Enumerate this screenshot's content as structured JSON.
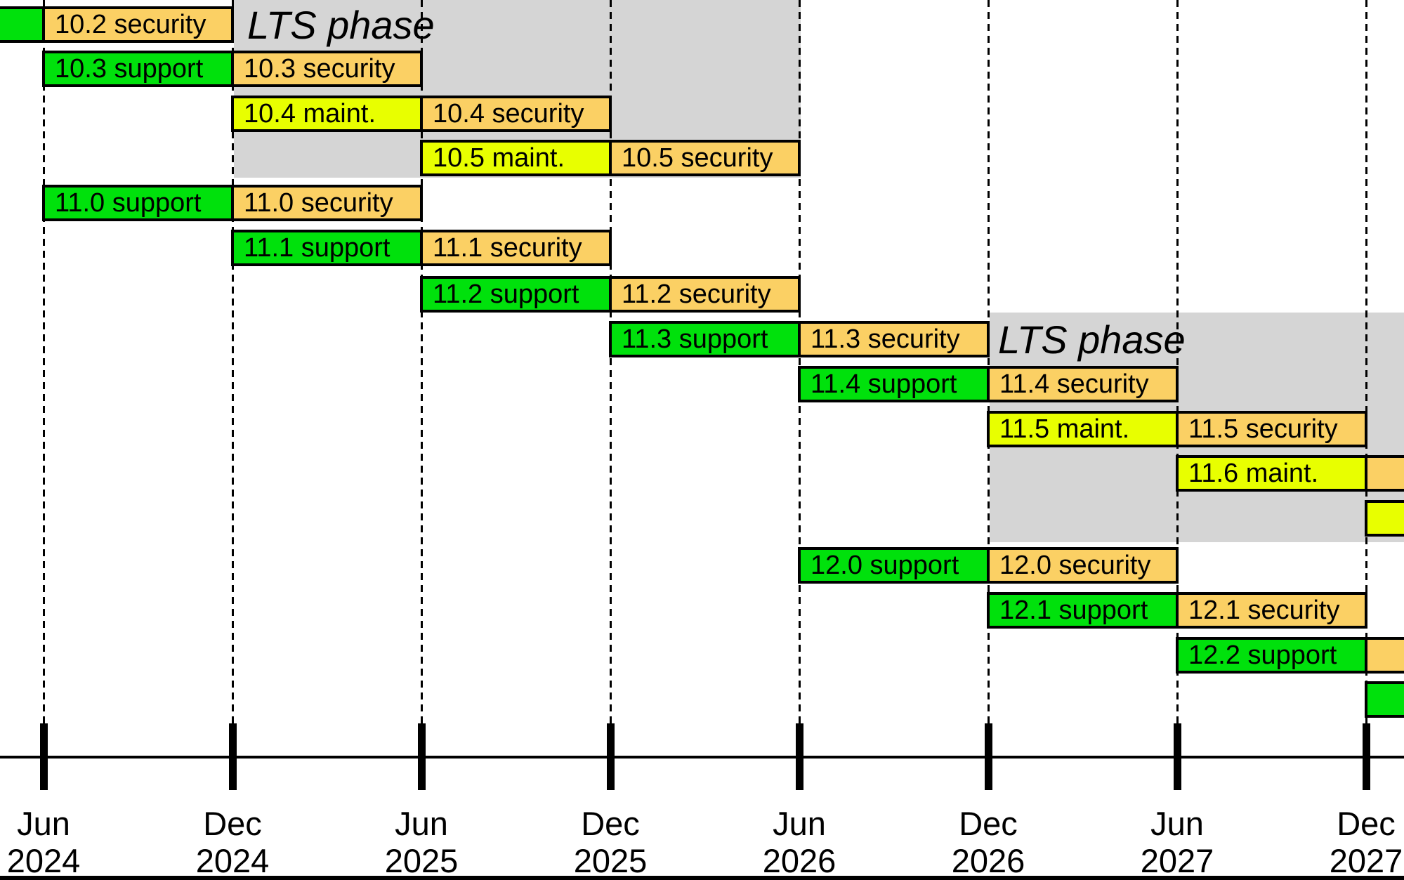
{
  "chart_data": {
    "type": "gantt",
    "description": "Software release support lifecycle timeline",
    "time_axis": {
      "unit": "months",
      "start": "2024-06",
      "end": "2027-12",
      "tick_interval_months": 6,
      "ticks": [
        {
          "month": "Jun",
          "year": "2024"
        },
        {
          "month": "Dec",
          "year": "2024"
        },
        {
          "month": "Jun",
          "year": "2025"
        },
        {
          "month": "Dec",
          "year": "2025"
        },
        {
          "month": "Jun",
          "year": "2026"
        },
        {
          "month": "Dec",
          "year": "2026"
        },
        {
          "month": "Jun",
          "year": "2027"
        },
        {
          "month": "Dec",
          "year": "2027"
        }
      ],
      "gridlines": "dashed-vertical-at-ticks"
    },
    "phases": {
      "support": "#00e10c",
      "maint": "#e8ff00",
      "security": "#fbd064"
    },
    "lts_color": "#d5d5d5",
    "bars": [
      {
        "row": 1,
        "version": "10.2",
        "phase": "support",
        "label": "",
        "start": null,
        "end": "2024-06"
      },
      {
        "row": 1,
        "version": "10.2",
        "phase": "security",
        "label": "10.2 security",
        "start": "2024-06",
        "end": "2024-12"
      },
      {
        "row": 2,
        "version": "10.3",
        "phase": "support",
        "label": "10.3 support",
        "start": "2024-06",
        "end": "2024-12"
      },
      {
        "row": 2,
        "version": "10.3",
        "phase": "security",
        "label": "10.3 security",
        "start": "2024-12",
        "end": "2025-06"
      },
      {
        "row": 3,
        "version": "10.4",
        "phase": "maint",
        "label": "10.4 maint.",
        "start": "2024-12",
        "end": "2025-06"
      },
      {
        "row": 3,
        "version": "10.4",
        "phase": "security",
        "label": "10.4 security",
        "start": "2025-06",
        "end": "2025-12"
      },
      {
        "row": 4,
        "version": "10.5",
        "phase": "maint",
        "label": "10.5 maint.",
        "start": "2025-06",
        "end": "2025-12"
      },
      {
        "row": 4,
        "version": "10.5",
        "phase": "security",
        "label": "10.5 security",
        "start": "2025-12",
        "end": "2026-06"
      },
      {
        "row": 5,
        "version": "11.0",
        "phase": "support",
        "label": "11.0 support",
        "start": "2024-06",
        "end": "2024-12"
      },
      {
        "row": 5,
        "version": "11.0",
        "phase": "security",
        "label": "11.0 security",
        "start": "2024-12",
        "end": "2025-06"
      },
      {
        "row": 6,
        "version": "11.1",
        "phase": "support",
        "label": "11.1 support",
        "start": "2024-12",
        "end": "2025-06"
      },
      {
        "row": 6,
        "version": "11.1",
        "phase": "security",
        "label": "11.1 security",
        "start": "2025-06",
        "end": "2025-12"
      },
      {
        "row": 7,
        "version": "11.2",
        "phase": "support",
        "label": "11.2 support",
        "start": "2025-06",
        "end": "2025-12"
      },
      {
        "row": 7,
        "version": "11.2",
        "phase": "security",
        "label": "11.2 security",
        "start": "2025-12",
        "end": "2026-06"
      },
      {
        "row": 8,
        "version": "11.3",
        "phase": "support",
        "label": "11.3 support",
        "start": "2025-12",
        "end": "2026-06"
      },
      {
        "row": 8,
        "version": "11.3",
        "phase": "security",
        "label": "11.3 security",
        "start": "2026-06",
        "end": "2026-12"
      },
      {
        "row": 9,
        "version": "11.4",
        "phase": "support",
        "label": "11.4 support",
        "start": "2026-06",
        "end": "2026-12"
      },
      {
        "row": 9,
        "version": "11.4",
        "phase": "security",
        "label": "11.4 security",
        "start": "2026-12",
        "end": "2027-06"
      },
      {
        "row": 10,
        "version": "11.5",
        "phase": "maint",
        "label": "11.5 maint.",
        "start": "2026-12",
        "end": "2027-06"
      },
      {
        "row": 10,
        "version": "11.5",
        "phase": "security",
        "label": "11.5 security",
        "start": "2027-06",
        "end": "2027-12"
      },
      {
        "row": 11,
        "version": "11.6",
        "phase": "maint",
        "label": "11.6 maint.",
        "start": "2027-06",
        "end": "2027-12"
      },
      {
        "row": 11,
        "version": "11.6",
        "phase": "security",
        "label": "",
        "start": "2027-12",
        "end": null
      },
      {
        "row": 12,
        "version": "",
        "phase": "maint",
        "label": "",
        "start": "2027-12",
        "end": null
      },
      {
        "row": 13,
        "version": "12.0",
        "phase": "support",
        "label": "12.0 support",
        "start": "2026-06",
        "end": "2026-12"
      },
      {
        "row": 13,
        "version": "12.0",
        "phase": "security",
        "label": "12.0 security",
        "start": "2026-12",
        "end": "2027-06"
      },
      {
        "row": 14,
        "version": "12.1",
        "phase": "support",
        "label": "12.1 support",
        "start": "2026-12",
        "end": "2027-06"
      },
      {
        "row": 14,
        "version": "12.1",
        "phase": "security",
        "label": "12.1 security",
        "start": "2027-06",
        "end": "2027-12"
      },
      {
        "row": 15,
        "version": "12.2",
        "phase": "support",
        "label": "12.2 support",
        "start": "2027-06",
        "end": "2027-12"
      },
      {
        "row": 15,
        "version": "12.2",
        "phase": "security",
        "label": "",
        "start": "2027-12",
        "end": null
      },
      {
        "row": 16,
        "version": "",
        "phase": "support",
        "label": "",
        "start": "2027-12",
        "end": null
      }
    ],
    "lts_regions": [
      {
        "label": "LTS phase",
        "start": "2024-12",
        "end": "2026-06",
        "label_row": 1,
        "rows": [
          1,
          4
        ]
      },
      {
        "label": "LTS phase",
        "start": "2026-12",
        "end": null,
        "label_row": 8,
        "rows": [
          8,
          12
        ]
      }
    ]
  }
}
